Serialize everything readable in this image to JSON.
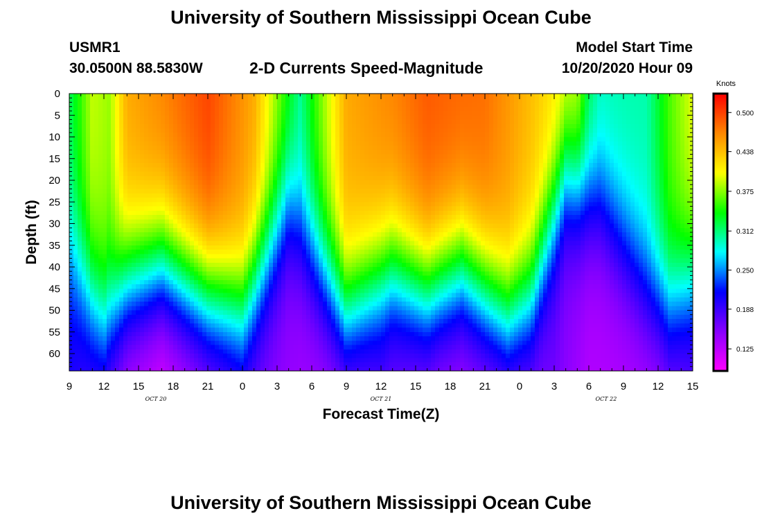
{
  "page": {
    "title_top": "University of Southern Mississippi Ocean Cube",
    "title_bottom": "University of Southern Mississippi Ocean Cube",
    "station_id": "USMR1",
    "coords": "30.0500N 88.5830W",
    "product": "2-D Currents Speed-Magnitude",
    "start_label": "Model Start Time",
    "start_value": "10/20/2020 Hour 09"
  },
  "colors": {
    "background": "#ffffff",
    "text": "#000000",
    "colormap": [
      "#ff00ff",
      "#8800ff",
      "#0000ff",
      "#00ffff",
      "#00ff00",
      "#ffff00",
      "#ff8800",
      "#ff0000"
    ]
  },
  "chart_data": {
    "type": "heatmap",
    "title": "2-D Currents Speed-Magnitude",
    "xlabel": "Forecast Time(Z)",
    "ylabel": "Depth (ft)",
    "colorbar_label": "Knots",
    "x_range_hours": [
      0,
      54
    ],
    "y_range": [
      0,
      64
    ],
    "x_tick_labels": [
      "9",
      "12",
      "15",
      "18",
      "21",
      "0",
      "3",
      "6",
      "9",
      "12",
      "15",
      "18",
      "21",
      "0",
      "3",
      "6",
      "9",
      "12",
      "15"
    ],
    "y_ticks": [
      0,
      5,
      10,
      15,
      20,
      25,
      30,
      35,
      40,
      45,
      50,
      55,
      60
    ],
    "date_labels": [
      {
        "text": "OCT 20",
        "hour": 7.5
      },
      {
        "text": "OCT 21",
        "hour": 27
      },
      {
        "text": "OCT 22",
        "hour": 46.5
      }
    ],
    "colorbar_range": [
      0.09,
      0.53
    ],
    "colorbar_ticks": [
      "0.500",
      "0.438",
      "0.375",
      "0.312",
      "0.250",
      "0.188",
      "0.125"
    ],
    "colorbar_tick_values": [
      0.5,
      0.438,
      0.375,
      0.312,
      0.25,
      0.188,
      0.125
    ],
    "surface_speed_knots": [
      [
        0,
        0.32
      ],
      [
        2,
        0.39
      ],
      [
        3.5,
        0.38
      ],
      [
        5,
        0.45
      ],
      [
        8,
        0.47
      ],
      [
        12,
        0.5
      ],
      [
        16,
        0.45
      ],
      [
        20,
        0.31
      ],
      [
        22,
        0.38
      ],
      [
        24,
        0.45
      ],
      [
        28,
        0.47
      ],
      [
        31,
        0.49
      ],
      [
        36,
        0.48
      ],
      [
        44,
        0.4
      ],
      [
        45,
        0.33
      ],
      [
        46,
        0.3
      ],
      [
        50,
        0.3
      ],
      [
        52,
        0.36
      ],
      [
        54,
        0.4
      ]
    ],
    "bottom_speed_knots": [
      [
        0,
        0.2
      ],
      [
        3,
        0.16
      ],
      [
        5,
        0.12
      ],
      [
        8,
        0.1
      ],
      [
        12,
        0.13
      ],
      [
        15,
        0.16
      ],
      [
        20,
        0.14
      ],
      [
        24,
        0.13
      ],
      [
        27,
        0.16
      ],
      [
        32,
        0.13
      ],
      [
        38,
        0.13
      ],
      [
        42,
        0.16
      ],
      [
        45,
        0.13
      ],
      [
        48,
        0.13
      ],
      [
        51,
        0.13
      ],
      [
        54,
        0.16
      ]
    ],
    "decay_depth_ft": [
      [
        0,
        37
      ],
      [
        3,
        53
      ],
      [
        5,
        44
      ],
      [
        8,
        40
      ],
      [
        12,
        47
      ],
      [
        15,
        50
      ],
      [
        19,
        27
      ],
      [
        24,
        51
      ],
      [
        28,
        41
      ],
      [
        31,
        46
      ],
      [
        34,
        41
      ],
      [
        38,
        52
      ],
      [
        40,
        47
      ],
      [
        43,
        20
      ],
      [
        46,
        26
      ],
      [
        50,
        45
      ],
      [
        52,
        50
      ],
      [
        54,
        44
      ]
    ]
  }
}
